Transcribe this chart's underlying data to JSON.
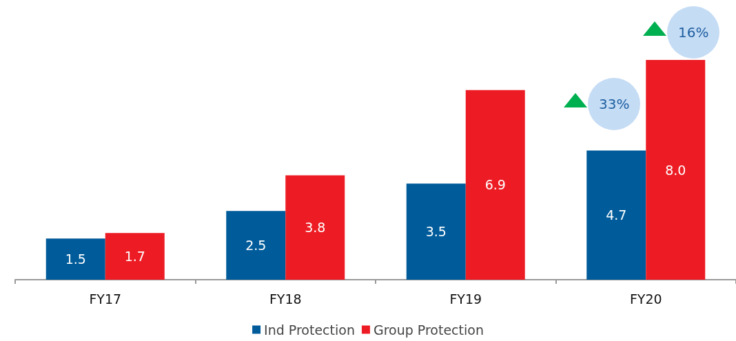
{
  "chart_data": {
    "type": "bar",
    "categories": [
      "FY17",
      "FY18",
      "FY19",
      "FY20"
    ],
    "series": [
      {
        "name": "Ind Protection",
        "color": "#005b9a",
        "values": [
          1.5,
          2.5,
          3.5,
          4.7
        ],
        "value_labels": [
          "1.5",
          "2.5",
          "3.5",
          "4.7"
        ]
      },
      {
        "name": "Group Protection",
        "color": "#ed1c24",
        "values": [
          1.7,
          3.8,
          6.9,
          8.0
        ],
        "value_labels": [
          "1.7",
          "3.8",
          "6.9",
          "8.0"
        ]
      }
    ],
    "legend": "bottom",
    "grid": false,
    "annotations": [
      "33%",
      "16%"
    ]
  }
}
